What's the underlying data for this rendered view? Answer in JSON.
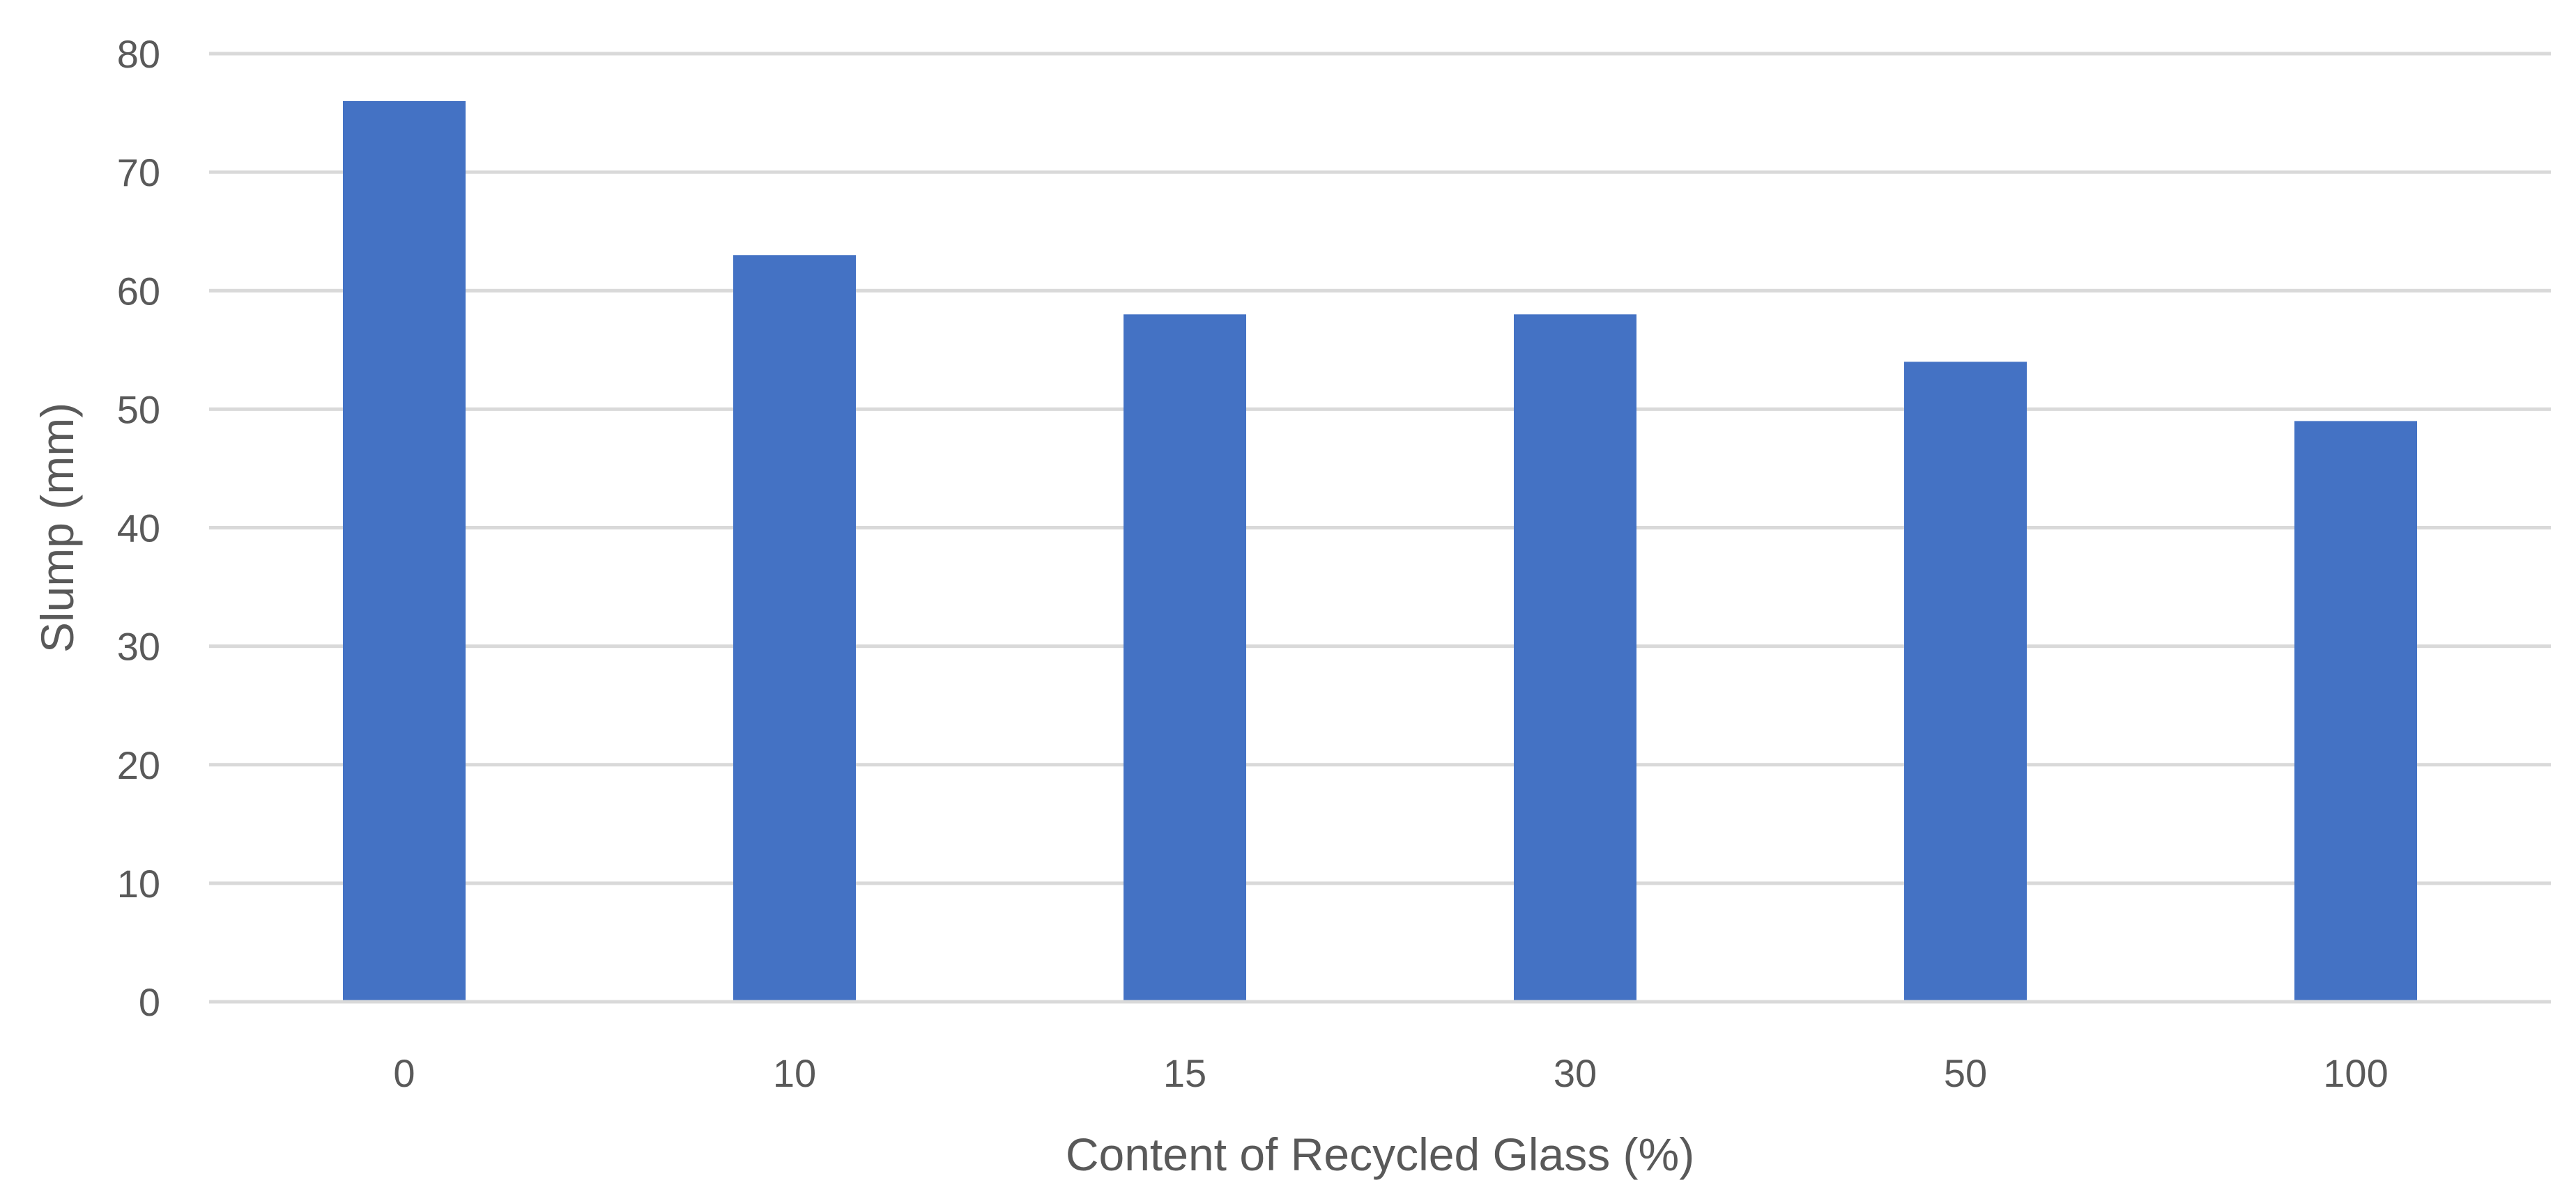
{
  "chart_data": {
    "type": "bar",
    "title": "",
    "xlabel": "Content of Recycled Glass (%)",
    "ylabel": "Slump (mm)",
    "categories": [
      "0",
      "10",
      "15",
      "30",
      "50",
      "100"
    ],
    "series": [
      {
        "values": [
          76,
          63,
          58,
          58,
          54,
          49
        ]
      }
    ],
    "ylim": [
      0,
      80
    ],
    "yticks": [
      0,
      10,
      20,
      30,
      40,
      50,
      60,
      70,
      80
    ],
    "grid": true,
    "legend": "none",
    "bar_color": "#4472c4",
    "grid_color": "#d9d9d9",
    "text_color": "#595959"
  }
}
